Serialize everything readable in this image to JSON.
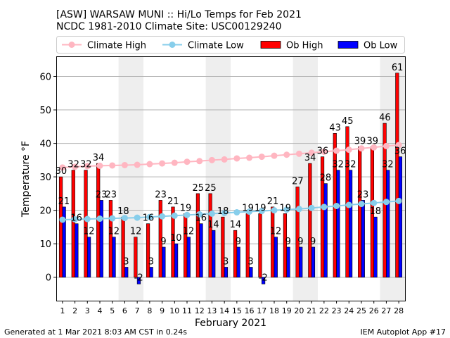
{
  "header": {
    "title_line1": "[ASW] WARSAW MUNI :: Hi/Lo Temps for Feb 2021",
    "title_line2": "NCDC 1981-2010 Climate Site: USC00129240"
  },
  "footer": {
    "generated": "Generated at 1 Mar 2021 8:03 AM CST in 0.24s",
    "app": "IEM Autoplot App #17"
  },
  "colors": {
    "climate_high": "#ffb6c1",
    "climate_low": "#87ceeb",
    "ob_high": "#ff0000",
    "ob_low": "#0000ff",
    "weekend_shade": "#eeeeee"
  },
  "chart_data": {
    "type": "bar",
    "xlabel": "February 2021",
    "ylabel": "Temperature °F",
    "ylim": [
      -7,
      66
    ],
    "xlim": [
      0.5,
      28.5
    ],
    "yticks": [
      0,
      10,
      20,
      30,
      40,
      50,
      60
    ],
    "grid": "y-major",
    "legend": "top",
    "categories": [
      1,
      2,
      3,
      4,
      5,
      6,
      7,
      8,
      9,
      10,
      11,
      12,
      13,
      14,
      15,
      16,
      17,
      18,
      19,
      20,
      21,
      22,
      23,
      24,
      25,
      26,
      27,
      28
    ],
    "shaded_days": [
      [
        6,
        7
      ],
      [
        13,
        14
      ],
      [
        20,
        21
      ],
      [
        27,
        28
      ]
    ],
    "series": [
      {
        "name": "Climate High",
        "kind": "line",
        "values": [
          32.8,
          33.0,
          33.2,
          33.3,
          33.4,
          33.5,
          33.6,
          33.8,
          34.0,
          34.2,
          34.5,
          34.7,
          35.0,
          35.2,
          35.5,
          35.7,
          36.0,
          36.3,
          36.6,
          36.9,
          37.2,
          37.5,
          37.8,
          38.1,
          38.5,
          38.8,
          39.2,
          39.5
        ]
      },
      {
        "name": "Climate Low",
        "kind": "line",
        "values": [
          17.2,
          17.3,
          17.4,
          17.5,
          17.6,
          17.7,
          17.8,
          18.0,
          18.2,
          18.4,
          18.6,
          18.8,
          19.0,
          19.2,
          19.4,
          19.6,
          19.8,
          20.0,
          20.2,
          20.4,
          20.7,
          21.0,
          21.3,
          21.6,
          21.9,
          22.2,
          22.5,
          22.8
        ]
      },
      {
        "name": "Ob High",
        "kind": "bar",
        "values": [
          30,
          32,
          32,
          34,
          23,
          18,
          12,
          16,
          23,
          21,
          19,
          25,
          25,
          18,
          14,
          19,
          19,
          21,
          19,
          27,
          34,
          36,
          43,
          45,
          39,
          39,
          46,
          61
        ]
      },
      {
        "name": "Ob Low",
        "kind": "bar",
        "values": [
          21,
          16,
          12,
          23,
          12,
          3,
          -2,
          3,
          9,
          10,
          12,
          16,
          14,
          3,
          9,
          3,
          -2,
          12,
          9,
          9,
          9,
          28,
          32,
          32,
          23,
          18,
          32,
          36
        ]
      }
    ]
  }
}
